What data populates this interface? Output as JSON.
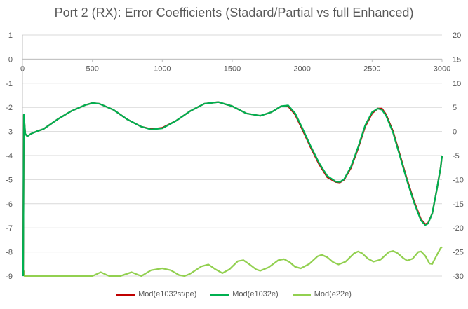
{
  "chart_data": {
    "type": "line",
    "title": "Port 2 (RX): Error Coefficients (Stadard/Partial vs full Enhanced)",
    "xlim": [
      0,
      3000
    ],
    "ylim_left": [
      -9,
      1
    ],
    "ylim_right": [
      -30,
      20
    ],
    "x_ticks": [
      "0",
      "500",
      "1000",
      "1500",
      "2000",
      "2500",
      "3000"
    ],
    "y_left_ticks": [
      "1",
      "0",
      "-1",
      "-2",
      "-3",
      "-4",
      "-5",
      "-6",
      "-7",
      "-8",
      "-9"
    ],
    "y_right_ticks": [
      "20",
      "15",
      "10",
      "5",
      "0",
      "-5",
      "-10",
      "-15",
      "-20",
      "-25",
      "-30"
    ],
    "grid": true,
    "legend_position": "bottom",
    "series": [
      {
        "name": "Mod(e1032st/pe)",
        "color": "#c00000",
        "axis": "left",
        "points": [
          [
            5,
            -9.0
          ],
          [
            10,
            -2.3
          ],
          [
            20,
            -3.1
          ],
          [
            35,
            -3.2
          ],
          [
            60,
            -3.1
          ],
          [
            100,
            -3.0
          ],
          [
            150,
            -2.9
          ],
          [
            250,
            -2.5
          ],
          [
            350,
            -2.15
          ],
          [
            450,
            -1.9
          ],
          [
            500,
            -1.82
          ],
          [
            550,
            -1.85
          ],
          [
            650,
            -2.1
          ],
          [
            750,
            -2.5
          ],
          [
            850,
            -2.8
          ],
          [
            920,
            -2.9
          ],
          [
            1000,
            -2.85
          ],
          [
            1100,
            -2.55
          ],
          [
            1200,
            -2.15
          ],
          [
            1300,
            -1.85
          ],
          [
            1400,
            -1.78
          ],
          [
            1500,
            -1.95
          ],
          [
            1600,
            -2.25
          ],
          [
            1700,
            -2.35
          ],
          [
            1780,
            -2.2
          ],
          [
            1850,
            -1.95
          ],
          [
            1900,
            -1.95
          ],
          [
            1950,
            -2.3
          ],
          [
            2000,
            -2.9
          ],
          [
            2060,
            -3.65
          ],
          [
            2120,
            -4.35
          ],
          [
            2180,
            -4.9
          ],
          [
            2240,
            -5.1
          ],
          [
            2270,
            -5.12
          ],
          [
            2300,
            -5.0
          ],
          [
            2350,
            -4.5
          ],
          [
            2400,
            -3.7
          ],
          [
            2450,
            -2.8
          ],
          [
            2500,
            -2.25
          ],
          [
            2540,
            -2.05
          ],
          [
            2570,
            -2.05
          ],
          [
            2600,
            -2.3
          ],
          [
            2650,
            -3.0
          ],
          [
            2700,
            -4.0
          ],
          [
            2750,
            -5.0
          ],
          [
            2800,
            -5.9
          ],
          [
            2850,
            -6.65
          ],
          [
            2880,
            -6.85
          ],
          [
            2900,
            -6.8
          ],
          [
            2930,
            -6.4
          ],
          [
            2960,
            -5.5
          ],
          [
            2990,
            -4.5
          ],
          [
            3000,
            -4.0
          ]
        ]
      },
      {
        "name": "Mod(e1032e)",
        "color": "#00b050",
        "axis": "left",
        "points": [
          [
            5,
            -9.0
          ],
          [
            10,
            -2.3
          ],
          [
            20,
            -3.1
          ],
          [
            35,
            -3.2
          ],
          [
            60,
            -3.1
          ],
          [
            100,
            -3.0
          ],
          [
            150,
            -2.9
          ],
          [
            250,
            -2.5
          ],
          [
            350,
            -2.15
          ],
          [
            450,
            -1.9
          ],
          [
            500,
            -1.82
          ],
          [
            550,
            -1.85
          ],
          [
            650,
            -2.1
          ],
          [
            750,
            -2.5
          ],
          [
            850,
            -2.8
          ],
          [
            920,
            -2.92
          ],
          [
            1000,
            -2.87
          ],
          [
            1100,
            -2.55
          ],
          [
            1200,
            -2.15
          ],
          [
            1300,
            -1.85
          ],
          [
            1400,
            -1.78
          ],
          [
            1500,
            -1.95
          ],
          [
            1600,
            -2.25
          ],
          [
            1700,
            -2.35
          ],
          [
            1780,
            -2.2
          ],
          [
            1850,
            -1.95
          ],
          [
            1900,
            -1.92
          ],
          [
            1950,
            -2.25
          ],
          [
            2000,
            -2.85
          ],
          [
            2060,
            -3.6
          ],
          [
            2120,
            -4.3
          ],
          [
            2180,
            -4.85
          ],
          [
            2240,
            -5.08
          ],
          [
            2270,
            -5.1
          ],
          [
            2300,
            -4.98
          ],
          [
            2350,
            -4.45
          ],
          [
            2400,
            -3.65
          ],
          [
            2450,
            -2.75
          ],
          [
            2500,
            -2.2
          ],
          [
            2540,
            -2.05
          ],
          [
            2570,
            -2.1
          ],
          [
            2600,
            -2.35
          ],
          [
            2650,
            -3.05
          ],
          [
            2700,
            -4.05
          ],
          [
            2750,
            -5.05
          ],
          [
            2800,
            -5.95
          ],
          [
            2850,
            -6.7
          ],
          [
            2880,
            -6.88
          ],
          [
            2900,
            -6.82
          ],
          [
            2930,
            -6.4
          ],
          [
            2960,
            -5.5
          ],
          [
            2990,
            -4.5
          ],
          [
            3000,
            -4.0
          ]
        ]
      },
      {
        "name": "Mod(e22e)",
        "color": "#92d050",
        "axis": "right",
        "points": [
          [
            5,
            -30
          ],
          [
            10,
            -29
          ],
          [
            15,
            -30
          ],
          [
            500,
            -30
          ],
          [
            560,
            -29.2
          ],
          [
            620,
            -30
          ],
          [
            700,
            -30
          ],
          [
            780,
            -29.2
          ],
          [
            850,
            -30
          ],
          [
            920,
            -28.8
          ],
          [
            1000,
            -28.4
          ],
          [
            1060,
            -28.8
          ],
          [
            1120,
            -29.8
          ],
          [
            1160,
            -30
          ],
          [
            1200,
            -29.5
          ],
          [
            1280,
            -28
          ],
          [
            1330,
            -27.6
          ],
          [
            1380,
            -28.6
          ],
          [
            1430,
            -29.4
          ],
          [
            1480,
            -28.6
          ],
          [
            1540,
            -26.9
          ],
          [
            1580,
            -26.7
          ],
          [
            1620,
            -27.5
          ],
          [
            1670,
            -28.6
          ],
          [
            1700,
            -28.9
          ],
          [
            1760,
            -28.2
          ],
          [
            1830,
            -26.7
          ],
          [
            1870,
            -26.5
          ],
          [
            1910,
            -27.1
          ],
          [
            1950,
            -28.1
          ],
          [
            1990,
            -28.4
          ],
          [
            2050,
            -27.5
          ],
          [
            2110,
            -25.9
          ],
          [
            2140,
            -25.6
          ],
          [
            2180,
            -26.1
          ],
          [
            2220,
            -27.1
          ],
          [
            2260,
            -27.6
          ],
          [
            2310,
            -27
          ],
          [
            2370,
            -25.3
          ],
          [
            2400,
            -24.9
          ],
          [
            2430,
            -25.3
          ],
          [
            2470,
            -26.4
          ],
          [
            2510,
            -27
          ],
          [
            2560,
            -26.6
          ],
          [
            2620,
            -25
          ],
          [
            2650,
            -24.8
          ],
          [
            2680,
            -25.2
          ],
          [
            2720,
            -26.2
          ],
          [
            2750,
            -26.8
          ],
          [
            2790,
            -26.4
          ],
          [
            2830,
            -25
          ],
          [
            2850,
            -24.9
          ],
          [
            2880,
            -25.8
          ],
          [
            2910,
            -27.4
          ],
          [
            2930,
            -27.5
          ],
          [
            2960,
            -25.8
          ],
          [
            2990,
            -24.2
          ],
          [
            3000,
            -24.0
          ]
        ]
      }
    ]
  }
}
